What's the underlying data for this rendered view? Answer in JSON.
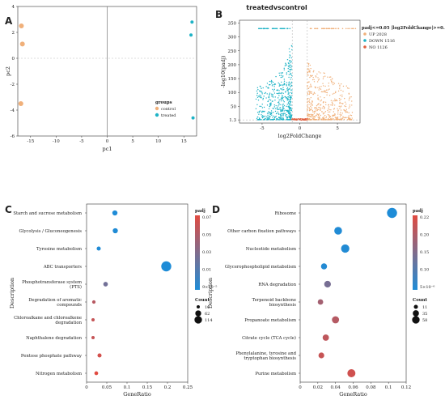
{
  "panels": {
    "a": "A",
    "b": "B",
    "c": "C",
    "d": "D"
  },
  "chart_data": [
    {
      "id": "A",
      "type": "scatter",
      "xlabel": "pc1",
      "ylabel": "pc2",
      "xlim": [
        -17.5,
        17.5
      ],
      "ylim": [
        -6,
        4
      ],
      "xticks": [
        -15,
        -10,
        -5,
        0,
        5,
        10,
        15
      ],
      "yticks": [
        -6,
        -4,
        -2,
        0,
        2,
        4
      ],
      "legend": {
        "title": "groups",
        "position": "bottom-right"
      },
      "series": [
        {
          "name": "control",
          "color": "#f0b07a",
          "points": [
            [
              -16.8,
              2.5
            ],
            [
              -16.6,
              1.1
            ],
            [
              -16.9,
              -3.5
            ]
          ]
        },
        {
          "name": "treated",
          "color": "#1fb3c6",
          "points": [
            [
              16.6,
              2.8
            ],
            [
              16.4,
              1.8
            ],
            [
              16.8,
              -4.6
            ]
          ]
        }
      ]
    },
    {
      "id": "B",
      "type": "scatter",
      "title": "treatedvscontrol",
      "xlabel": "log2FoldChange",
      "ylabel": "-log10(padj)",
      "xlim": [
        -8,
        8
      ],
      "ylim": [
        -10,
        360
      ],
      "xticks": [
        -5,
        0,
        5
      ],
      "yticks": [
        1.3,
        50,
        100,
        150,
        200,
        250,
        300,
        350
      ],
      "thresholds": {
        "x": [
          -1,
          1
        ],
        "y": 1.3
      },
      "legend": {
        "title": "padj<=0.05 |log2FoldChange|>=0.0",
        "position": "top-right",
        "entries": [
          {
            "label": "UP 2028",
            "color": "#f0b07a"
          },
          {
            "label": "DOWN 1516",
            "color": "#1fb3c6"
          },
          {
            "label": "NO 1126",
            "color": "#e06040"
          }
        ]
      },
      "cap": 330
    },
    {
      "id": "C",
      "type": "scatter",
      "xlabel": "GeneRatio",
      "ylabel": "Description",
      "xlim": [
        0,
        0.25
      ],
      "xticks": [
        0,
        0.05,
        0.1,
        0.15,
        0.2,
        0.25
      ],
      "xtick_labels": [
        "0",
        "0.05",
        "0.1",
        "0.15",
        "0.2",
        "0.25"
      ],
      "categories": [
        "Starch and sucrose metabolism",
        "Glycolysis / Gluconeogenesis",
        "Tyrosine metabolism",
        "ABC transporters",
        "Phosphotransferase system (PTS)",
        "Degradation of aromatic compounds",
        "Chloroalkane and chloroalkene degradation",
        "Naphthalene degradation",
        "Pentose phosphate pathway",
        "Nitrogen metabolism"
      ],
      "generatio": [
        0.07,
        0.071,
        0.03,
        0.197,
        0.047,
        0.018,
        0.016,
        0.016,
        0.032,
        0.024
      ],
      "padj": [
        0.0002,
        0.0008,
        0.001,
        1e-05,
        0.03,
        0.055,
        0.06,
        0.06,
        0.065,
        0.07
      ],
      "count": [
        18,
        18,
        8,
        114,
        12,
        4,
        3,
        3,
        8,
        6
      ],
      "legend": {
        "color_title": "padj",
        "color_ticks": [
          "0.07",
          "0.05",
          "0.03",
          "0.01",
          "9×10⁻⁵"
        ],
        "size_title": "Count",
        "size_entries": [
          "10",
          "62",
          "114"
        ],
        "size_values": [
          10,
          62,
          114
        ]
      }
    },
    {
      "id": "D",
      "type": "scatter",
      "xlabel": "GeneRatio",
      "ylabel": "Description",
      "xlim": [
        0,
        0.12
      ],
      "xticks": [
        0,
        0.02,
        0.04,
        0.06,
        0.08,
        0.1,
        0.12
      ],
      "xtick_labels": [
        "0",
        "0.02",
        "0.04",
        "0.06",
        "0.08",
        "0.1",
        "0.12"
      ],
      "categories": [
        "Ribosome",
        "Other carbon fixation pathways",
        "Nucleotide metabolism",
        "Glycerophospholipid metabolism",
        "RNA degradation",
        "Terpenoid backbone biosynthesis",
        "Propanoate metabolism",
        "Citrate cycle (TCA cycle)",
        "Phenylalanine, tyrosine and tryptophan biosynthesis",
        "Purine metabolism"
      ],
      "generatio": [
        0.104,
        0.043,
        0.051,
        0.027,
        0.031,
        0.023,
        0.04,
        0.029,
        0.024,
        0.058
      ],
      "padj": [
        1e-06,
        0.003,
        0.005,
        0.006,
        0.1,
        0.15,
        0.17,
        0.18,
        0.19,
        0.2
      ],
      "count": [
        58,
        30,
        36,
        15,
        20,
        11,
        24,
        17,
        13,
        33
      ],
      "legend": {
        "color_title": "padj",
        "color_ticks": [
          "0.22",
          "0.20",
          "0.15",
          "0.10",
          "5×10⁻⁶"
        ],
        "size_title": "Count",
        "size_entries": [
          "11",
          "35",
          "58"
        ],
        "size_values": [
          11,
          35,
          58
        ]
      }
    }
  ]
}
